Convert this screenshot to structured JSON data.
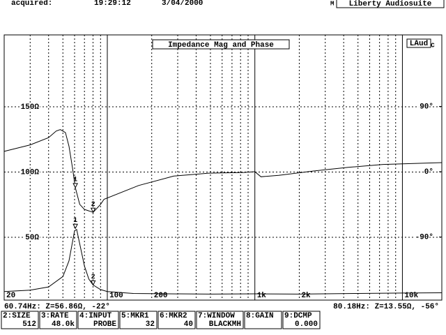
{
  "header": {
    "label": "acquired:",
    "time": "19:29:12",
    "date": "3/04/2000",
    "mode": "M",
    "app": "Liberty Audiosuite"
  },
  "chart_data": {
    "type": "line",
    "title": "Impedance Mag and Phase",
    "badge": "LAud",
    "badge_sub": "C",
    "xlim": [
      20,
      18500
    ],
    "xscale": "log",
    "xticks": [
      20,
      100,
      200,
      {
        "value": 1000,
        "label": "1k"
      },
      {
        "value": 2000,
        "label": "2k"
      },
      {
        "value": 10000,
        "label": "10k"
      }
    ],
    "xminorticks": [
      30,
      40,
      50,
      60,
      70,
      80,
      90,
      300,
      400,
      500,
      600,
      700,
      800,
      900,
      3000,
      4000,
      5000,
      6000,
      7000,
      8000,
      9000
    ],
    "ylim": [
      1.9,
      205.1
    ],
    "yticks": [
      {
        "value": 50,
        "label": "50Ω"
      },
      {
        "value": 100,
        "label": "100Ω"
      },
      {
        "value": 150,
        "label": "150Ω"
      }
    ],
    "y2lim": [
      -177,
      188.6
    ],
    "y2ticks": [
      {
        "value": -90,
        "label": "-90°"
      },
      {
        "value": 0,
        "label": "0°"
      },
      {
        "value": 90,
        "label": "90°"
      }
    ],
    "grid": true,
    "series": [
      {
        "name": "Magnitude",
        "color": "#000000",
        "x": [
          20,
          30,
          40,
          50,
          55,
          60,
          62,
          65,
          70,
          75,
          80,
          90,
          100,
          150,
          200,
          500,
          1000,
          2000,
          5000,
          10000,
          18500
        ],
        "values": [
          8.5,
          9.5,
          12,
          20,
          32,
          55,
          56,
          45,
          28,
          18,
          13.5,
          10,
          8.5,
          7,
          6.8,
          6.5,
          6.7,
          6.5,
          7,
          7.3,
          7.5
        ]
      },
      {
        "name": "Phase",
        "color": "#000000",
        "axis": "y2",
        "x": [
          20,
          30,
          40,
          45,
          48,
          52,
          55,
          58,
          60.74,
          65,
          70,
          80.18,
          90,
          95,
          163,
          282,
          487,
          840,
          1000,
          1100,
          1450,
          2500,
          4300,
          7400,
          18500
        ],
        "values": [
          28,
          37,
          47,
          56,
          58,
          54,
          35,
          6,
          -22,
          -45,
          -52,
          -56,
          -45,
          -38,
          -19,
          -6,
          -2,
          -1,
          0,
          -7,
          -5,
          1,
          6,
          10,
          12.5
        ]
      }
    ],
    "markers": [
      {
        "label": "1",
        "x": 60.74,
        "y": 56.86,
        "y2": -22,
        "readout": "60.74Hz: Z=56.86Ω, -22°"
      },
      {
        "label": "2",
        "x": 80.18,
        "y": 13.55,
        "y2": -56,
        "readout": "80.18Hz: Z=13.55Ω, -56°"
      }
    ]
  },
  "function_keys": [
    {
      "label": "2:SIZE",
      "value": "512"
    },
    {
      "label": "3:RATE",
      "value": "48.0k"
    },
    {
      "label": "4:INPUT",
      "value": "PROBE"
    },
    {
      "label": "5:MKR1",
      "value": "32"
    },
    {
      "label": "6:MKR2",
      "value": "40"
    },
    {
      "label": "7:WINDOW",
      "value": "BLACKMH"
    },
    {
      "label": "8:GAIN"
    },
    {
      "label": "9:DCMP",
      "value": "0.000"
    }
  ]
}
